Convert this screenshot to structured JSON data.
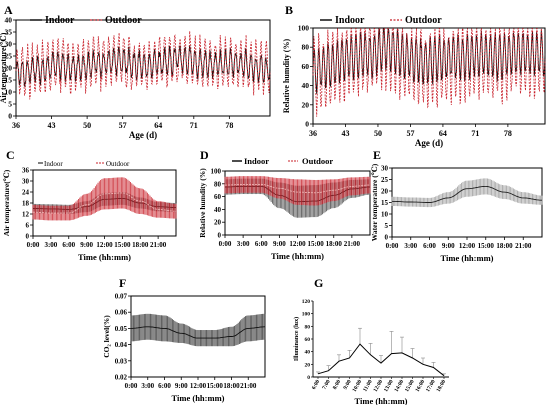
{
  "legend": {
    "indoor": "Indoor",
    "outdoor": "Outdoor"
  },
  "colors": {
    "indoor": "#111111",
    "outdoor": "#c8202a",
    "outdoor_band": "#c8202a",
    "indoor_band": "#444444",
    "water_band": "#999999",
    "co2_band": "#333333"
  },
  "chart_data": [
    {
      "panel": "A",
      "type": "line",
      "xlabel": "Age (d)",
      "ylabel": "Air temperature(℃)",
      "xlim": [
        36,
        86
      ],
      "ylim": [
        0,
        40
      ],
      "xticks": [
        "36",
        "43",
        "50",
        "57",
        "64",
        "71",
        "78"
      ],
      "yticks": [
        "0",
        "5",
        "10",
        "15",
        "20",
        "25",
        "30",
        "35",
        "40"
      ],
      "series": [
        {
          "name": "Indoor",
          "style": "solid",
          "x": [
            36,
            40,
            44,
            48,
            52,
            56,
            60,
            64,
            68,
            72,
            76,
            80,
            84,
            86
          ],
          "values": [
            18,
            19,
            21,
            20,
            22,
            23,
            21,
            22,
            24,
            22,
            21,
            22,
            20,
            20
          ],
          "daily_amplitude": 5
        },
        {
          "name": "Outdoor",
          "style": "dashed",
          "x": [
            36,
            40,
            44,
            48,
            52,
            56,
            60,
            64,
            68,
            72,
            76,
            80,
            84,
            86
          ],
          "values": [
            18,
            19,
            22,
            20,
            22,
            24,
            21,
            22,
            24,
            22,
            21,
            22,
            20,
            20
          ],
          "daily_amplitude": 10
        }
      ]
    },
    {
      "panel": "B",
      "type": "line",
      "xlabel": "Age (d)",
      "ylabel": "Relative humdity (%)",
      "xlim": [
        36,
        86
      ],
      "ylim": [
        0,
        100
      ],
      "xticks": [
        "36",
        "43",
        "50",
        "57",
        "64",
        "71",
        "78"
      ],
      "yticks": [
        "0",
        "20",
        "40",
        "60",
        "80",
        "100"
      ],
      "series": [
        {
          "name": "Indoor",
          "style": "solid",
          "x": [
            36,
            40,
            44,
            48,
            52,
            56,
            60,
            64,
            68,
            72,
            76,
            80,
            84,
            86
          ],
          "values": [
            55,
            62,
            70,
            72,
            80,
            70,
            65,
            68,
            70,
            72,
            70,
            74,
            72,
            72
          ],
          "daily_amplitude": 22
        },
        {
          "name": "Outdoor",
          "style": "dashed",
          "x": [
            36,
            40,
            44,
            48,
            52,
            56,
            60,
            64,
            68,
            72,
            76,
            80,
            84,
            86
          ],
          "values": [
            50,
            58,
            66,
            70,
            78,
            62,
            58,
            60,
            64,
            66,
            62,
            70,
            68,
            68
          ],
          "daily_amplitude": 38
        }
      ]
    },
    {
      "panel": "C",
      "type": "area",
      "xlabel": "Time (hh:mm)",
      "ylabel": "Air temperature(℃)",
      "xlim": [
        0,
        24
      ],
      "ylim": [
        0,
        36
      ],
      "xticks": [
        "0:00",
        "3:00",
        "6:00",
        "9:00",
        "12:00",
        "15:00",
        "18:00",
        "21:00"
      ],
      "yticks": [
        "0",
        "6",
        "12",
        "18",
        "24",
        "30",
        "36"
      ],
      "series": [
        {
          "name": "Indoor",
          "x": [
            0,
            3,
            6,
            9,
            12,
            15,
            18,
            21,
            24
          ],
          "mean": [
            15,
            14.8,
            14.5,
            16,
            20,
            20.5,
            18,
            16,
            15.5
          ],
          "sd": [
            2.5,
            2.5,
            2.5,
            3,
            3.5,
            3.5,
            3,
            2.5,
            2.5
          ]
        },
        {
          "name": "Outdoor",
          "x": [
            0,
            3,
            6,
            9,
            12,
            15,
            18,
            21,
            24
          ],
          "mean": [
            13,
            12.5,
            12.5,
            17,
            23,
            23.5,
            19,
            14.5,
            13.5
          ],
          "sd": [
            4,
            4,
            4,
            6,
            8.5,
            8.5,
            7,
            4.5,
            4
          ]
        }
      ]
    },
    {
      "panel": "D",
      "type": "area",
      "xlabel": "Time (hh:mm)",
      "ylabel": "Relative humdity (%)",
      "xlim": [
        0,
        24
      ],
      "ylim": [
        0,
        100
      ],
      "xticks": [
        "0:00",
        "3:00",
        "6:00",
        "9:00",
        "12:00",
        "15:00",
        "18:00",
        "21:00"
      ],
      "yticks": [
        "0",
        "20",
        "40",
        "60",
        "80",
        "100"
      ],
      "series": [
        {
          "name": "Indoor",
          "x": [
            0,
            3,
            6,
            9,
            12,
            15,
            18,
            21,
            24
          ],
          "mean": [
            75,
            76,
            76,
            62,
            52,
            53,
            62,
            72,
            75
          ],
          "sd": [
            12,
            12,
            12,
            20,
            25,
            25,
            20,
            14,
            12
          ]
        },
        {
          "name": "Outdoor",
          "x": [
            0,
            3,
            6,
            9,
            12,
            15,
            18,
            21,
            24
          ],
          "mean": [
            78,
            79,
            79,
            73,
            67,
            66,
            70,
            76,
            78
          ],
          "sd": [
            13,
            13,
            13,
            16,
            20,
            20,
            17,
            14,
            13
          ]
        }
      ]
    },
    {
      "panel": "E",
      "type": "area",
      "xlabel": "Time (hh:mm)",
      "ylabel": "Water temperature (℃)",
      "xlim": [
        0,
        24
      ],
      "ylim": [
        0,
        30
      ],
      "xticks": [
        "0:00",
        "3:00",
        "6:00",
        "9:00",
        "12:00",
        "15:00",
        "18:00",
        "21:00"
      ],
      "yticks": [
        "0",
        "5",
        "10",
        "15",
        "20",
        "25",
        "30"
      ],
      "series": [
        {
          "name": "Water",
          "x": [
            0,
            3,
            6,
            9,
            12,
            15,
            18,
            21,
            24
          ],
          "mean": [
            15.5,
            15.2,
            15,
            17,
            21,
            22,
            19.5,
            17,
            16
          ],
          "sd": [
            2,
            2,
            2,
            2.5,
            3.5,
            3.5,
            3,
            2.5,
            2
          ]
        }
      ]
    },
    {
      "panel": "F",
      "type": "area",
      "xlabel": "Time (hh:mm)",
      "ylabel": "CO₂ level(%)",
      "xlim": [
        0,
        24
      ],
      "ylim": [
        0.02,
        0.07
      ],
      "xticks": [
        "0:00",
        "3:00",
        "6:00",
        "9:00",
        "12:00",
        "15:00",
        "18:00",
        "21:00"
      ],
      "yticks": [
        "0.02",
        "0.03",
        "0.04",
        "0.05",
        "0.06",
        "0.07"
      ],
      "series": [
        {
          "name": "CO2",
          "x": [
            0,
            3,
            6,
            9,
            12,
            15,
            18,
            21,
            24
          ],
          "mean": [
            0.05,
            0.051,
            0.05,
            0.047,
            0.044,
            0.044,
            0.045,
            0.05,
            0.051
          ],
          "sd": [
            0.008,
            0.008,
            0.008,
            0.006,
            0.005,
            0.005,
            0.006,
            0.008,
            0.008
          ]
        }
      ]
    },
    {
      "panel": "G",
      "type": "line",
      "xlabel": "Time (hh:mm)",
      "ylabel": "Illuminance (lux)",
      "ylim": [
        0,
        120
      ],
      "yticks": [
        "0",
        "20",
        "40",
        "60",
        "80",
        "100",
        "120"
      ],
      "categories": [
        "6:00",
        "7:00",
        "8:00",
        "9:00",
        "10:00",
        "11:00",
        "12:00",
        "13:00",
        "14:00",
        "15:00",
        "16:00",
        "17:00",
        "18:00"
      ],
      "values": [
        5,
        10,
        25,
        30,
        52,
        35,
        22,
        37,
        38,
        30,
        20,
        15,
        2
      ],
      "errors": [
        3,
        8,
        10,
        12,
        25,
        18,
        12,
        35,
        25,
        15,
        10,
        8,
        3
      ]
    }
  ]
}
